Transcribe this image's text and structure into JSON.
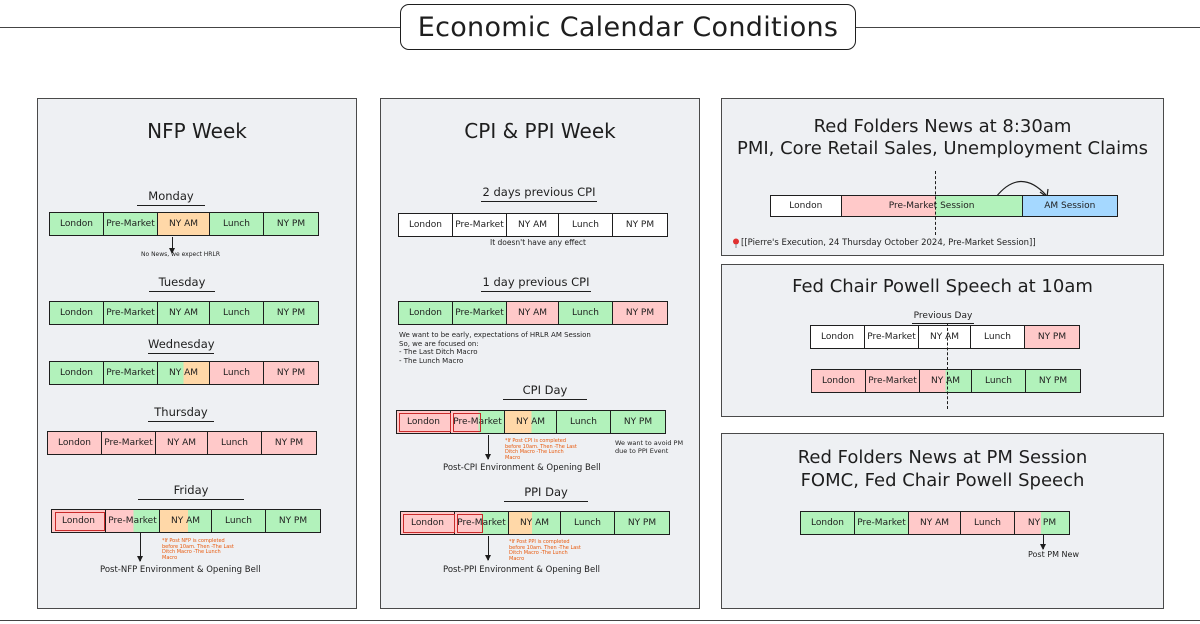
{
  "title": "Economic Calendar Conditions",
  "nfp": {
    "title": "NFP Week",
    "days": [
      {
        "name": "Monday",
        "segments": [
          "London",
          "Pre-Market",
          "NY AM",
          "Lunch",
          "NY PM"
        ],
        "note": "No News, we expect HRLR"
      },
      {
        "name": "Tuesday",
        "segments": [
          "London",
          "Pre-Market",
          "NY AM",
          "Lunch",
          "NY PM"
        ]
      },
      {
        "name": "Wednesday",
        "segments": [
          "London",
          "Pre-Market",
          "NY AM",
          "Lunch",
          "NY PM"
        ]
      },
      {
        "name": "Thursday",
        "segments": [
          "London",
          "Pre-Market",
          "NY AM",
          "Lunch",
          "NY PM"
        ]
      },
      {
        "name": "Friday",
        "segments": [
          "London",
          "Pre-Market",
          "NY AM",
          "Lunch",
          "NY PM"
        ]
      }
    ],
    "friday_orange_note": "*If Post NFP is completed before 10am. Then -The Last Ditch Macro -The Lunch Macro",
    "caption": "Post-NFP Environment & Opening Bell"
  },
  "cpi": {
    "title": "CPI & PPI Week",
    "sections": [
      {
        "name": "2 days previous CPI",
        "segments": [
          "London",
          "Pre-Market",
          "NY AM",
          "Lunch",
          "NY PM"
        ]
      },
      {
        "name": "1 day previous CPI",
        "segments": [
          "London",
          "Pre-Market",
          "NY AM",
          "Lunch",
          "NY PM"
        ]
      },
      {
        "name": "CPI Day",
        "segments": [
          "London",
          "Pre-Market",
          "NY AM",
          "Lunch",
          "NY PM"
        ]
      },
      {
        "name": "PPI Day",
        "segments": [
          "London",
          "Pre-Market",
          "NY AM",
          "Lunch",
          "NY PM"
        ]
      }
    ],
    "no_effect": "It doesn't have any effect",
    "focus_lines": [
      "We want to be early, expectations of HRLR AM Session",
      "So, we are focused on:",
      "- The Last Ditch Macro",
      "- The Lunch Macro"
    ],
    "cpi_orange_note": "*If Post CPI is completed before 10am. Then -The Last Ditch Macro -The Lunch Macro",
    "avoid_pm": "We want to avoid PM due to PPI Event",
    "cpi_caption": "Post-CPI Environment & Opening Bell",
    "ppi_orange_note": "*If Post PPI is completed before 10am. Then -The Last Ditch Macro -The Lunch Macro",
    "ppi_caption": "Post-PPI Environment & Opening Bell"
  },
  "red830": {
    "title1": "Red Folders News at 8:30am",
    "title2": "PMI, Core Retail Sales, Unemployment Claims",
    "seg_london": "London",
    "seg_premarket": "Pre-Market Session",
    "seg_am": "AM Session",
    "link": "[[Pierre's Execution, 24 Thursday October 2024, Pre-Market Session]]"
  },
  "powell": {
    "title": "Fed Chair Powell Speech at 10am",
    "prev_day": "Previous Day",
    "segments": [
      "London",
      "Pre-Market",
      "NY AM",
      "Lunch",
      "NY PM"
    ]
  },
  "pm": {
    "title1": "Red Folders News at PM Session",
    "title2": "FOMC, Fed Chair Powell Speech",
    "segments": [
      "London",
      "Pre-Market",
      "NY AM",
      "Lunch",
      "NY PM"
    ],
    "caption": "Post PM New"
  },
  "colors": {
    "green": "#b2f2bb",
    "red": "#ffc9c9",
    "orange": "#ffd8a8",
    "blue": "#a5d8ff",
    "panel": "#eef0f3"
  }
}
